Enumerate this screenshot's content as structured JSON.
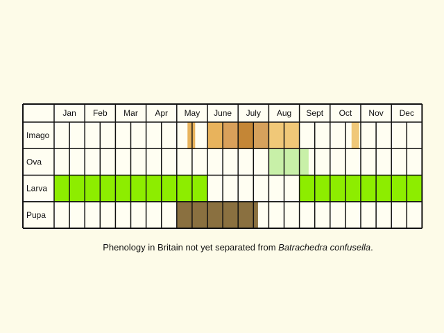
{
  "chart_data": {
    "type": "table",
    "title": "",
    "months": [
      "Jan",
      "Feb",
      "Mar",
      "Apr",
      "May",
      "June",
      "July",
      "Aug",
      "Sept",
      "Oct",
      "Nov",
      "Dec"
    ],
    "columns_per_month": 2,
    "rows": [
      {
        "label": "Imago",
        "spans": [
          {
            "start": 8.7,
            "end": 9.2,
            "color": "#e8b35c"
          },
          {
            "start": 10.0,
            "end": 11.0,
            "color": "#e8b35c"
          },
          {
            "start": 11.0,
            "end": 13.0,
            "color": "#d9a05a"
          },
          {
            "start": 12.0,
            "end": 13.0,
            "color": "#c48636"
          },
          {
            "start": 13.0,
            "end": 14.0,
            "color": "#d6a15c"
          },
          {
            "start": 14.0,
            "end": 16.0,
            "color": "#f0c878"
          },
          {
            "start": 19.4,
            "end": 19.9,
            "color": "#f0c878"
          }
        ]
      },
      {
        "label": "Ova",
        "spans": [
          {
            "start": 14.0,
            "end": 16.6,
            "color": "#c8f0a8"
          }
        ]
      },
      {
        "label": "Larva",
        "spans": [
          {
            "start": 0.0,
            "end": 10.0,
            "color": "#8ded00"
          },
          {
            "start": 16.0,
            "end": 24.0,
            "color": "#8ded00"
          }
        ]
      },
      {
        "label": "Pupa",
        "spans": [
          {
            "start": 8.0,
            "end": 13.3,
            "color": "#8a7040"
          }
        ]
      }
    ],
    "colors": {
      "background": "#fdfbe8",
      "cell": "#fffef2",
      "grid": "#111111"
    }
  },
  "caption": {
    "text": "Phenology in Britain not yet separated from ",
    "species": "Batrachedra confusella",
    "end": "."
  }
}
